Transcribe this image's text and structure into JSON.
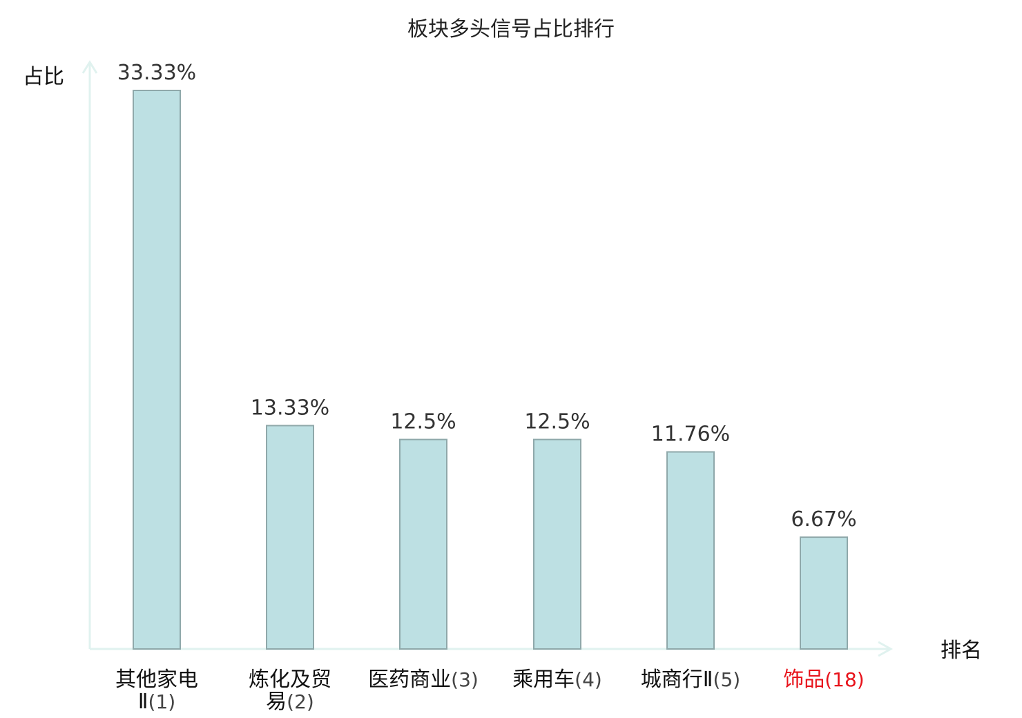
{
  "chart_data": {
    "type": "bar",
    "title": "板块多头信号占比排行",
    "xlabel": "排名",
    "ylabel": "占比",
    "categories": [
      "其他家电Ⅱ",
      "炼化及贸易",
      "医药商业",
      "乘用车",
      "城商行Ⅱ",
      "饰品"
    ],
    "category_lines": [
      [
        "其他家电",
        "Ⅱ"
      ],
      [
        "炼化及贸",
        "易"
      ],
      [
        "医药商业"
      ],
      [
        "乘用车"
      ],
      [
        "城商行Ⅱ"
      ],
      [
        "饰品"
      ]
    ],
    "ranks": [
      "(1)",
      "(2)",
      "(3)",
      "(4)",
      "(5)",
      "(18)"
    ],
    "values": [
      33.33,
      13.33,
      12.5,
      12.5,
      11.76,
      6.67
    ],
    "value_labels": [
      "33.33%",
      "13.33%",
      "12.5%",
      "12.5%",
      "11.76%",
      "6.67%"
    ],
    "highlight_index": 5,
    "ylim": [
      0,
      33.33
    ],
    "grid": false,
    "colors": {
      "bar_fill": "#bde0e3",
      "bar_stroke": "#8fa8aa",
      "axis": "#e0f2ef",
      "label": "#111111",
      "rank": "#444444",
      "highlight": "#e8141c"
    }
  }
}
